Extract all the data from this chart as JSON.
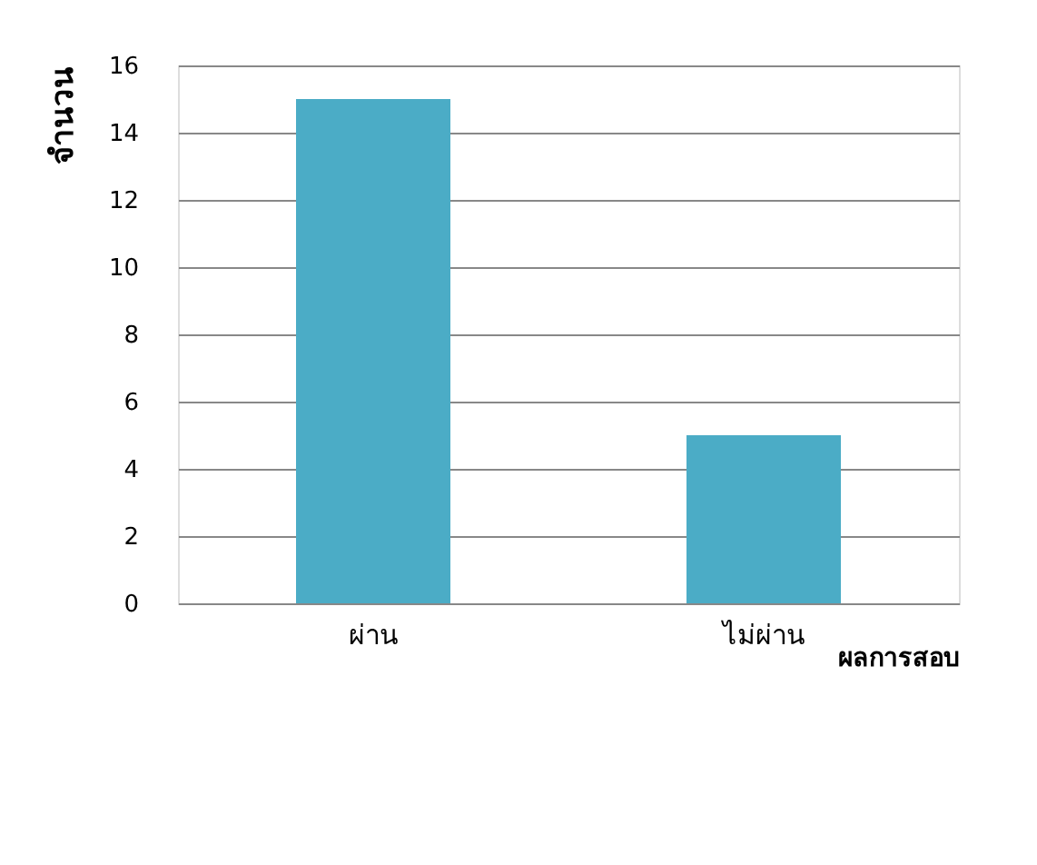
{
  "chart_data": {
    "type": "bar",
    "xlabel": "ผลการสอบ",
    "ylabel": "จำนวน",
    "categories": [
      "ผ่าน",
      "ไม่ผ่าน"
    ],
    "values": [
      15,
      5
    ],
    "color": "#4bacc6",
    "ylim": [
      0,
      16
    ],
    "yticks": [
      0,
      2,
      4,
      6,
      8,
      10,
      12,
      14,
      16
    ],
    "grid": "y"
  }
}
